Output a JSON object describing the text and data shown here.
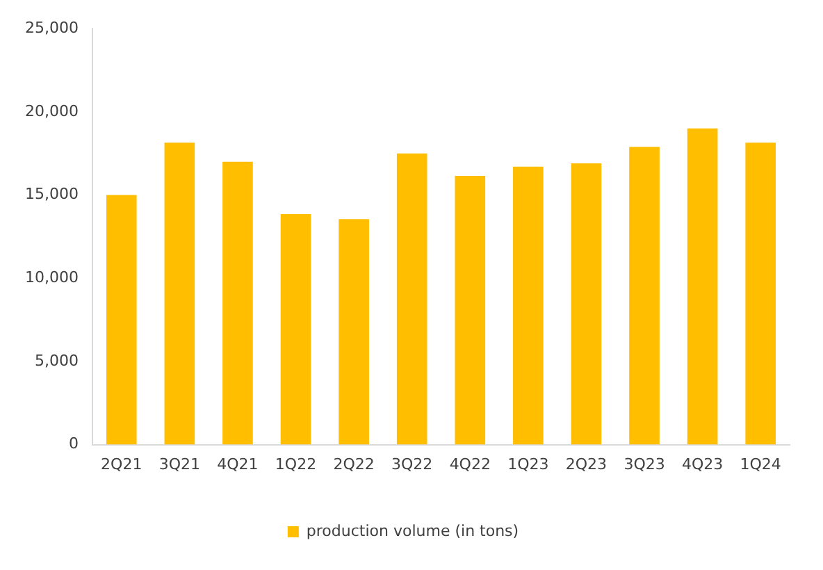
{
  "chart_data": {
    "type": "bar",
    "categories": [
      "2Q21",
      "3Q21",
      "4Q21",
      "1Q22",
      "2Q22",
      "3Q22",
      "4Q22",
      "1Q23",
      "2Q23",
      "3Q23",
      "4Q23",
      "1Q24"
    ],
    "series": [
      {
        "name": "production volume (in tons)",
        "color": "#ffbe00",
        "values": [
          15000,
          18150,
          17000,
          13850,
          13550,
          17500,
          16150,
          16700,
          16900,
          17900,
          19000,
          18150
        ]
      }
    ],
    "ylim": [
      0,
      25000
    ],
    "yticks": [
      {
        "value": 0,
        "label": "0"
      },
      {
        "value": 5000,
        "label": "5,000"
      },
      {
        "value": 10000,
        "label": "10,000"
      },
      {
        "value": 15000,
        "label": "15,000"
      },
      {
        "value": 20000,
        "label": "20,000"
      },
      {
        "value": 25000,
        "label": "25,000"
      }
    ],
    "grid": false,
    "legend": "bottom"
  }
}
